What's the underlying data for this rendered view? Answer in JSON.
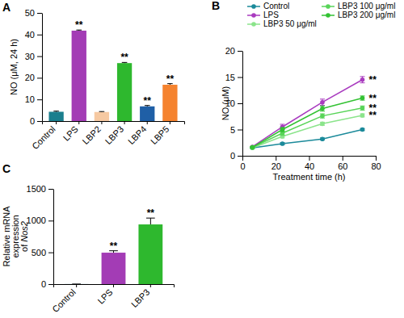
{
  "chart_data": [
    {
      "panel": "A",
      "type": "bar",
      "ylabel": "NO (μM, 24 h)",
      "categories": [
        "Control",
        "LPS",
        "LBP2",
        "LBP3",
        "LBP4",
        "LBP5"
      ],
      "values": [
        4.3,
        41.8,
        4.2,
        26.8,
        6.8,
        16.8
      ],
      "errors": [
        0.3,
        0.3,
        0.2,
        0.3,
        0.4,
        0.5
      ],
      "significance": [
        null,
        "**",
        null,
        "**",
        "**",
        "**"
      ],
      "colors": [
        "#1b7f8e",
        "#a33cb5",
        "#f6c9a2",
        "#2eb82e",
        "#1f5fa6",
        "#f5832f"
      ],
      "ylim": [
        0,
        50
      ],
      "yticks": [
        0,
        10,
        20,
        30,
        40,
        50
      ],
      "grid": false
    },
    {
      "panel": "B",
      "type": "line",
      "xlabel": "Treatment time (h)",
      "ylabel": "NO (μM)",
      "x": [
        6,
        24,
        48,
        72
      ],
      "series": [
        {
          "name": "Control",
          "color": "#1b8a9a",
          "values": [
            1.5,
            2.3,
            3.2,
            5.0
          ],
          "errors": [
            0.1,
            0.2,
            0.2,
            0.2
          ]
        },
        {
          "name": "LPS",
          "color": "#a93bbf",
          "values": [
            1.7,
            5.5,
            10.2,
            14.5
          ],
          "errors": [
            0.1,
            0.5,
            0.6,
            0.6
          ],
          "significance": "**"
        },
        {
          "name": "LBP3 50 μg/ml",
          "color": "#8be48b",
          "values": [
            1.5,
            3.7,
            6.1,
            7.7
          ],
          "errors": [
            0.1,
            0.3,
            0.3,
            0.3
          ],
          "significance": "**"
        },
        {
          "name": "LBP3 100 μg/ml",
          "color": "#58d458",
          "values": [
            1.6,
            4.3,
            7.6,
            9.1
          ],
          "errors": [
            0.1,
            0.4,
            0.4,
            0.4
          ],
          "significance": "**"
        },
        {
          "name": "LBP3 200 μg/ml",
          "color": "#33c233",
          "values": [
            1.6,
            5.0,
            9.0,
            11.0
          ],
          "errors": [
            0.1,
            0.4,
            0.5,
            0.4
          ],
          "significance": "**"
        }
      ],
      "xlim": [
        0,
        80
      ],
      "xticks": [
        0,
        20,
        40,
        60,
        80
      ],
      "ylim": [
        0,
        20
      ],
      "yticks": [
        0,
        5,
        10,
        15,
        20
      ],
      "marker": "circle",
      "legend": "top",
      "grid": false
    },
    {
      "panel": "C",
      "type": "bar",
      "ylabel": [
        "Relative mRNA",
        "expression",
        "of Nos2"
      ],
      "categories": [
        "Control",
        "LPS",
        "LBP3"
      ],
      "values": [
        1,
        495,
        940
      ],
      "errors": [
        0,
        30,
        100
      ],
      "significance": [
        null,
        "**",
        "**"
      ],
      "colors": [
        "#1b7f8e",
        "#a33cb5",
        "#2eb82e"
      ],
      "ylim": [
        0,
        1500
      ],
      "yticks": [
        0,
        500,
        1000,
        1500
      ],
      "grid": false
    }
  ]
}
